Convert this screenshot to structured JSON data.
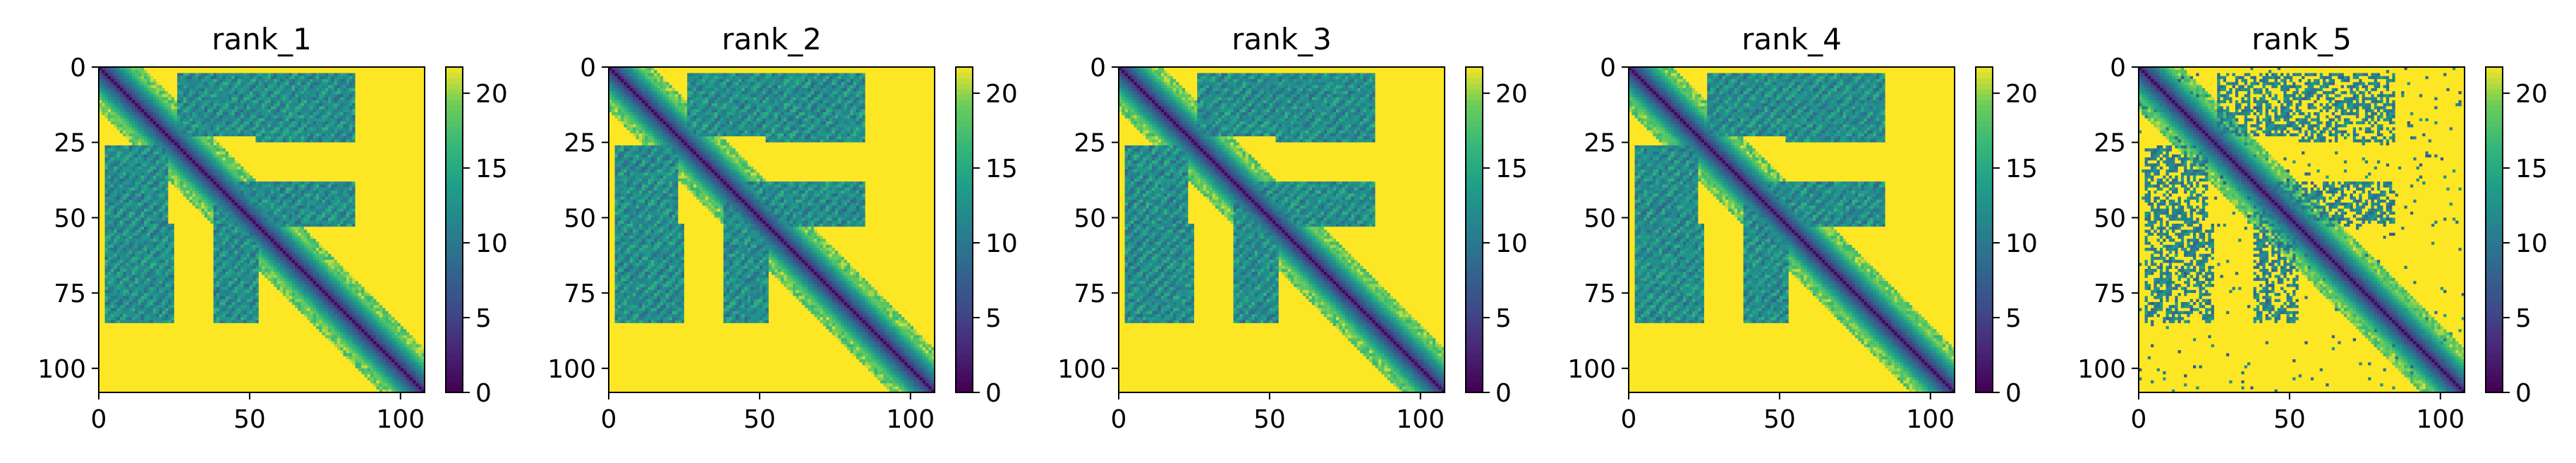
{
  "chart_data": [
    {
      "type": "heatmap",
      "title": "rank_1",
      "x_ticks": [
        "0",
        "50",
        "100"
      ],
      "y_ticks": [
        "0",
        "25",
        "50",
        "75",
        "100"
      ],
      "xlim": [
        0,
        108
      ],
      "ylim": [
        108,
        0
      ],
      "colorbar": {
        "ticks": [
          "0",
          "5",
          "10",
          "15",
          "20"
        ],
        "range": [
          0,
          21.75
        ],
        "colormap": "viridis"
      },
      "matrix_size": 108,
      "features": {
        "diagonal_band_width": 10,
        "contact_blocks": "moderate",
        "noise": "low"
      }
    },
    {
      "type": "heatmap",
      "title": "rank_2",
      "x_ticks": [
        "0",
        "50",
        "100"
      ],
      "y_ticks": [
        "0",
        "25",
        "50",
        "75",
        "100"
      ],
      "xlim": [
        0,
        108
      ],
      "ylim": [
        108,
        0
      ],
      "colorbar": {
        "ticks": [
          "0",
          "5",
          "10",
          "15",
          "20"
        ],
        "range": [
          0,
          21.75
        ],
        "colormap": "viridis"
      },
      "matrix_size": 108,
      "features": {
        "diagonal_band_width": 10,
        "contact_blocks": "moderate",
        "noise": "low"
      }
    },
    {
      "type": "heatmap",
      "title": "rank_3",
      "x_ticks": [
        "0",
        "50",
        "100"
      ],
      "y_ticks": [
        "0",
        "25",
        "50",
        "75",
        "100"
      ],
      "xlim": [
        0,
        108
      ],
      "ylim": [
        108,
        0
      ],
      "colorbar": {
        "ticks": [
          "0",
          "5",
          "10",
          "15",
          "20"
        ],
        "range": [
          0,
          21.75
        ],
        "colormap": "viridis"
      },
      "matrix_size": 108,
      "features": {
        "diagonal_band_width": 10,
        "contact_blocks": "moderate",
        "noise": "low"
      }
    },
    {
      "type": "heatmap",
      "title": "rank_4",
      "x_ticks": [
        "0",
        "50",
        "100"
      ],
      "y_ticks": [
        "0",
        "25",
        "50",
        "75",
        "100"
      ],
      "xlim": [
        0,
        108
      ],
      "ylim": [
        108,
        0
      ],
      "colorbar": {
        "ticks": [
          "0",
          "5",
          "10",
          "15",
          "20"
        ],
        "range": [
          0,
          21.75
        ],
        "colormap": "viridis"
      },
      "matrix_size": 108,
      "features": {
        "diagonal_band_width": 10,
        "contact_blocks": "moderate",
        "noise": "low"
      }
    },
    {
      "type": "heatmap",
      "title": "rank_5",
      "x_ticks": [
        "0",
        "50",
        "100"
      ],
      "y_ticks": [
        "0",
        "25",
        "50",
        "75",
        "100"
      ],
      "xlim": [
        0,
        108
      ],
      "ylim": [
        108,
        0
      ],
      "colorbar": {
        "ticks": [
          "0",
          "5",
          "10",
          "15",
          "20"
        ],
        "range": [
          0,
          21.75
        ],
        "colormap": "viridis"
      },
      "matrix_size": 108,
      "features": {
        "diagonal_band_width": 10,
        "contact_blocks": "sparse",
        "noise": "high"
      }
    }
  ]
}
